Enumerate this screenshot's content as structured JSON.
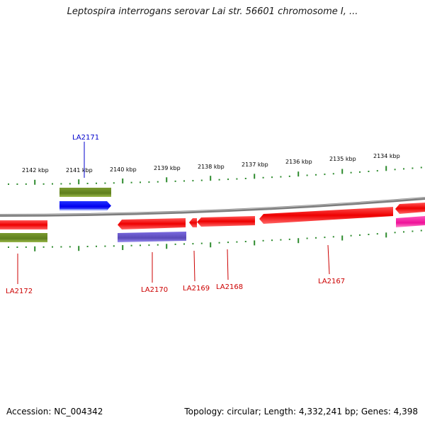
{
  "title": "Leptospira interrogans serovar Lai str. 56601 chromosome I, ...",
  "ticks": [
    "2142 kbp",
    "2141 kbp",
    "2140 kbp",
    "2139 kbp",
    "2138 kbp",
    "2137 kbp",
    "2136 kbp",
    "2135 kbp",
    "2134 kbp"
  ],
  "genes": [
    {
      "label": "LA2171",
      "strand": "forward",
      "color": "#0000cc"
    },
    {
      "label": "LA2172",
      "strand": "reverse",
      "color": "#cc0000"
    },
    {
      "label": "LA2170",
      "strand": "reverse",
      "color": "#cc0000"
    },
    {
      "label": "LA2169",
      "strand": "reverse",
      "color": "#cc0000"
    },
    {
      "label": "LA2168",
      "strand": "reverse",
      "color": "#cc0000"
    },
    {
      "label": "LA2167",
      "strand": "reverse",
      "color": "#cc0000"
    }
  ],
  "colors": {
    "forward_gene": "#0000ee",
    "reverse_gene": "#ee1111",
    "feature_olive": "#6b8e23",
    "feature_purple": "#6a5acd",
    "feature_magenta": "#ff1493",
    "backbone": "#888888",
    "ticks": "#2e8b2e"
  },
  "footer": {
    "accession": "Accession: NC_004342",
    "summary": "Topology: circular; Length: 4,332,241 bp; Genes: 4,398"
  }
}
